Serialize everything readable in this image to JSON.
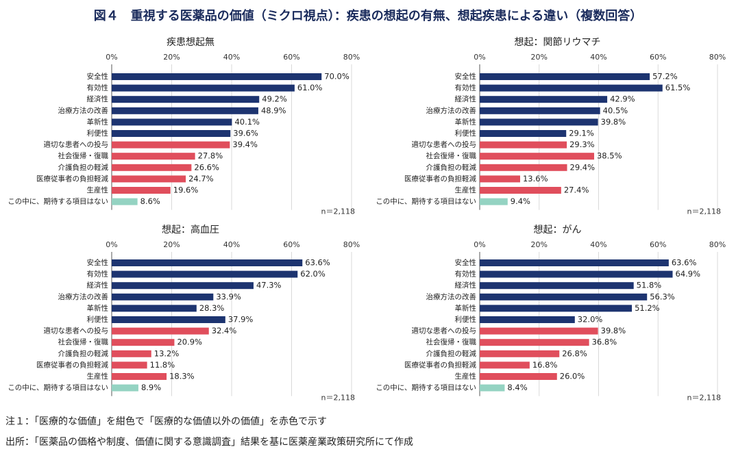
{
  "title": "図４　重視する医薬品の価値（ミクロ視点）：疾患の想起の有無、想起疾患による違い（複数回答）",
  "notes": [
    "注１：「医療的な価値」を紺色で「医療的な価値以外の価値」を赤色で示す",
    "出所：「医薬品の価格や制度、価値に関する意識調査」結果を基に医薬産業政策研究所にて作成"
  ],
  "chart_data": [
    {
      "type": "bar",
      "title": "疾患想起無",
      "annotation": "n＝2,118",
      "categories": [
        "安全性",
        "有効性",
        "経済性",
        "治療方法の改善",
        "革新性",
        "利便性",
        "適切な患者への投与",
        "社会復帰・復職",
        "介護負担の軽減",
        "医療従事者の負担軽減",
        "生産性",
        "この中に、期待する項目はない"
      ],
      "values": [
        70,
        61,
        49.2,
        48.9,
        40.1,
        39.6,
        39.4,
        27.8,
        26.6,
        24.7,
        19.6,
        8.6
      ],
      "value_labels": [
        "70.0%",
        "61.0%",
        "49.2%",
        "48.9%",
        "40.1%",
        "39.6%",
        "39.4%",
        "27.8%",
        "26.6%",
        "24.7%",
        "19.6%",
        "8.6%"
      ],
      "colors": [
        "#1d3470",
        "#1d3470",
        "#1d3470",
        "#1d3470",
        "#1d3470",
        "#1d3470",
        "#e04e5c",
        "#e04e5c",
        "#e04e5c",
        "#e04e5c",
        "#e04e5c",
        "#94d3c2"
      ],
      "xlim": [
        0,
        80
      ],
      "xticks": [
        {
          "value": 0,
          "label": "0%"
        },
        {
          "value": 20,
          "label": "20%"
        },
        {
          "value": 40,
          "label": "40%"
        },
        {
          "value": 60,
          "label": "60%"
        },
        {
          "value": 80,
          "label": "80%"
        }
      ],
      "grid": true
    },
    {
      "type": "bar",
      "title": "想起：関節リウマチ",
      "annotation": "n＝2,118",
      "categories": [
        "安全性",
        "有効性",
        "経済性",
        "治療方法の改善",
        "革新性",
        "利便性",
        "適切な患者への投与",
        "社会復帰・復職",
        "介護負担の軽減",
        "医療従事者の負担軽減",
        "生産性",
        "この中に、期待する項目はない"
      ],
      "values": [
        57.2,
        61.5,
        42.9,
        40.5,
        39.8,
        29.1,
        29.3,
        38.5,
        29.4,
        13.6,
        27.4,
        9.4
      ],
      "value_labels": [
        "57.2%",
        "61.5%",
        "42.9%",
        "40.5%",
        "39.8%",
        "29.1%",
        "29.3%",
        "38.5%",
        "29.4%",
        "13.6%",
        "27.4%",
        "9.4%"
      ],
      "colors": [
        "#1d3470",
        "#1d3470",
        "#1d3470",
        "#1d3470",
        "#1d3470",
        "#1d3470",
        "#e04e5c",
        "#e04e5c",
        "#e04e5c",
        "#e04e5c",
        "#e04e5c",
        "#94d3c2"
      ],
      "xlim": [
        0,
        80
      ],
      "xticks": [
        {
          "value": 0,
          "label": "0%"
        },
        {
          "value": 20,
          "label": "20%"
        },
        {
          "value": 40,
          "label": "40%"
        },
        {
          "value": 60,
          "label": "60%"
        },
        {
          "value": 80,
          "label": "80%"
        }
      ],
      "grid": true
    },
    {
      "type": "bar",
      "title": "想起：高血圧",
      "annotation": "n＝2,118",
      "categories": [
        "安全性",
        "有効性",
        "経済性",
        "治療方法の改善",
        "革新性",
        "利便性",
        "適切な患者への投与",
        "社会復帰・復職",
        "介護負担の軽減",
        "医療従事者の負担軽減",
        "生産性",
        "この中に、期待する項目はない"
      ],
      "values": [
        63.6,
        62,
        47.3,
        33.9,
        28.3,
        37.9,
        32.4,
        20.9,
        13.2,
        11.8,
        18.3,
        8.9
      ],
      "value_labels": [
        "63.6%",
        "62.0%",
        "47.3%",
        "33.9%",
        "28.3%",
        "37.9%",
        "32.4%",
        "20.9%",
        "13.2%",
        "11.8%",
        "18.3%",
        "8.9%"
      ],
      "colors": [
        "#1d3470",
        "#1d3470",
        "#1d3470",
        "#1d3470",
        "#1d3470",
        "#1d3470",
        "#e04e5c",
        "#e04e5c",
        "#e04e5c",
        "#e04e5c",
        "#e04e5c",
        "#94d3c2"
      ],
      "xlim": [
        0,
        80
      ],
      "xticks": [
        {
          "value": 0,
          "label": "0%"
        },
        {
          "value": 20,
          "label": "20%"
        },
        {
          "value": 40,
          "label": "40%"
        },
        {
          "value": 60,
          "label": "60%"
        },
        {
          "value": 80,
          "label": "80%"
        }
      ],
      "grid": true
    },
    {
      "type": "bar",
      "title": "想起：がん",
      "annotation": "n＝2,118",
      "categories": [
        "安全性",
        "有効性",
        "経済性",
        "治療方法の改善",
        "革新性",
        "利便性",
        "適切な患者への投与",
        "社会復帰・復職",
        "介護負担の軽減",
        "医療従事者の負担軽減",
        "生産性",
        "この中に、期待する項目はない"
      ],
      "values": [
        63.6,
        64.9,
        51.8,
        56.3,
        51.2,
        32,
        39.8,
        36.8,
        26.8,
        16.8,
        26,
        8.4
      ],
      "value_labels": [
        "63.6%",
        "64.9%",
        "51.8%",
        "56.3%",
        "51.2%",
        "32.0%",
        "39.8%",
        "36.8%",
        "26.8%",
        "16.8%",
        "26.0%",
        "8.4%"
      ],
      "colors": [
        "#1d3470",
        "#1d3470",
        "#1d3470",
        "#1d3470",
        "#1d3470",
        "#1d3470",
        "#e04e5c",
        "#e04e5c",
        "#e04e5c",
        "#e04e5c",
        "#e04e5c",
        "#94d3c2"
      ],
      "xlim": [
        0,
        80
      ],
      "xticks": [
        {
          "value": 0,
          "label": "0%"
        },
        {
          "value": 20,
          "label": "20%"
        },
        {
          "value": 40,
          "label": "40%"
        },
        {
          "value": 60,
          "label": "60%"
        },
        {
          "value": 80,
          "label": "80%"
        }
      ],
      "grid": true
    }
  ]
}
